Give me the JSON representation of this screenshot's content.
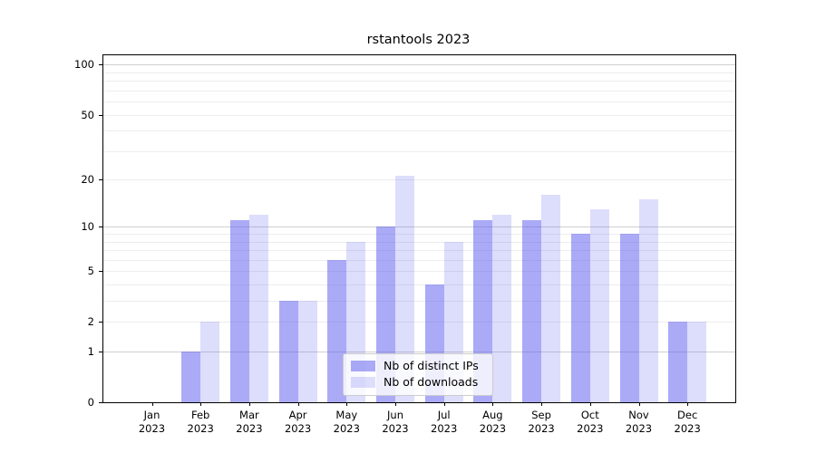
{
  "title": "rstantools 2023",
  "colors": {
    "ips": "rgba(85,85,238,0.5)",
    "downloads": "rgba(85,85,238,0.2)",
    "ips_hex_effective": "#aaaaf6",
    "downloads_hex_effective": "#dcdcf9",
    "grid_major": "#d0d0d0",
    "grid_minor": "#ededed",
    "spine": "#000000"
  },
  "legend": {
    "position": "lower center",
    "items": [
      {
        "key": "ips",
        "label": "Nb of distinct IPs"
      },
      {
        "key": "downloads",
        "label": "Nb of downloads"
      }
    ]
  },
  "chart_data": {
    "type": "bar",
    "title": "rstantools 2023",
    "categories": [
      "Jan 2023",
      "Feb 2023",
      "Mar 2023",
      "Apr 2023",
      "May 2023",
      "Jun 2023",
      "Jul 2023",
      "Aug 2023",
      "Sep 2023",
      "Oct 2023",
      "Nov 2023",
      "Dec 2023"
    ],
    "months": [
      "Jan",
      "Feb",
      "Mar",
      "Apr",
      "May",
      "Jun",
      "Jul",
      "Aug",
      "Sep",
      "Oct",
      "Nov",
      "Dec"
    ],
    "year": "2023",
    "series": [
      {
        "key": "ips",
        "name": "Nb of distinct IPs",
        "values": [
          0,
          1,
          11,
          3,
          6,
          10,
          4,
          11,
          11,
          9,
          9,
          2
        ]
      },
      {
        "key": "downloads",
        "name": "Nb of downloads",
        "values": [
          0,
          2,
          12,
          3,
          8,
          21,
          8,
          12,
          16,
          13,
          15,
          2
        ]
      }
    ],
    "y_axis": {
      "scale": "log1p",
      "ticks": [
        0,
        1,
        2,
        5,
        10,
        20,
        50,
        100
      ],
      "tick_labels": [
        "0",
        "1",
        "2",
        "5",
        "10",
        "20",
        "50",
        "100"
      ],
      "major_gridlines": [
        1,
        10,
        100
      ],
      "minor_gridlines": [
        2,
        3,
        4,
        5,
        6,
        7,
        8,
        9,
        20,
        30,
        40,
        50,
        60,
        70,
        80,
        90
      ],
      "top": 114
    },
    "grid": true,
    "legend_position": "lower center"
  }
}
